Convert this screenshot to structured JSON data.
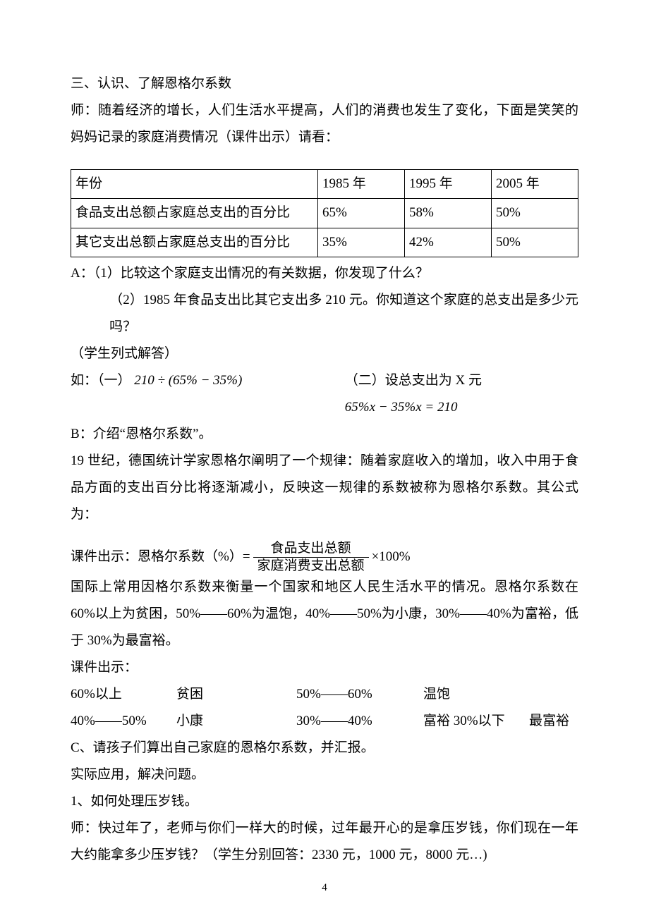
{
  "text_color": "#000000",
  "background_color": "#ffffff",
  "border_color": "#000000",
  "base_font_size": 19,
  "section3_title": "三、认识、了解恩格尔系数",
  "teacher_intro_1": "师：随着经济的增长，人们生活水平提高，人们的消费也发生了变化，下面是笑笑的妈妈记录的家庭消费情况（课件出示）请看：",
  "table": {
    "columns": [
      "年份",
      "1985 年",
      "1995 年",
      "2005 年"
    ],
    "rows": [
      [
        "食品支出总额占家庭总支出的百分比",
        "65%",
        "58%",
        "50%"
      ],
      [
        "其它支出总额占家庭总支出的百分比",
        "35%",
        "42%",
        "50%"
      ]
    ]
  },
  "qA_prefix": "A：",
  "q1": "（1）比较这个家庭支出情况的有关数据，你发现了什么？",
  "q2": "（2）1985 年食品支出比其它支出多 210 元。你知道这个家庭的总支出是多少元吗？",
  "student_note": "（学生列式解答）",
  "eg_left_label": "如：（一）",
  "eg_left_expr_a": "210 ÷ ",
  "eg_left_expr_b": "(65% − 35%)",
  "eg_right_label": "（二）设总支出为 X 元",
  "eq_line": "65%x − 35%x = 210",
  "b_label": "B：介绍“恩格尔系数”。",
  "b_para": "19 世纪，德国统计学家恩格尔阐明了一个规律：随着家庭收入的增加，收入中用于食品方面的支出百分比将逐渐减小，反映这一规律的系数被称为恩格尔系数。其公式为：",
  "formula_prefix": "课件出示：恩格尔系数（%）= ",
  "formula_num": "食品支出总额",
  "formula_den": "家庭消费支出总额",
  "formula_suffix": "×100%",
  "intl_para": "国际上常用因格尔系数来衡量一个国家和地区人民生活水平的情况。恩格尔系数在 60%以上为贫困，50%——60%为温饱，40%——50%为小康，30%——40%为富裕，低于 30%为最富裕。",
  "courseware_show": "课件出示：",
  "levels": {
    "r1": {
      "a": "60%以上",
      "b": "贫困",
      "c": "50%——60%",
      "d": "温饱",
      "e": ""
    },
    "r2": {
      "a": "40%——50%",
      "b": "小康",
      "c": "30%——40%",
      "d": "富裕 30%以下",
      "e": "最富裕"
    }
  },
  "c_line": "C、请孩子们算出自己家庭的恩格尔系数，并汇报。",
  "apply_line": "实际应用，解决问题。",
  "item1": "1、如何处理压岁钱。",
  "teacher_q": "师：快过年了，老师与你们一样大的时候，过年最开心的是拿压岁钱，你们现在一年大约能拿多少压岁钱？（学生分别回答：2330 元，1000 元，8000 元…)",
  "page_number": "4"
}
